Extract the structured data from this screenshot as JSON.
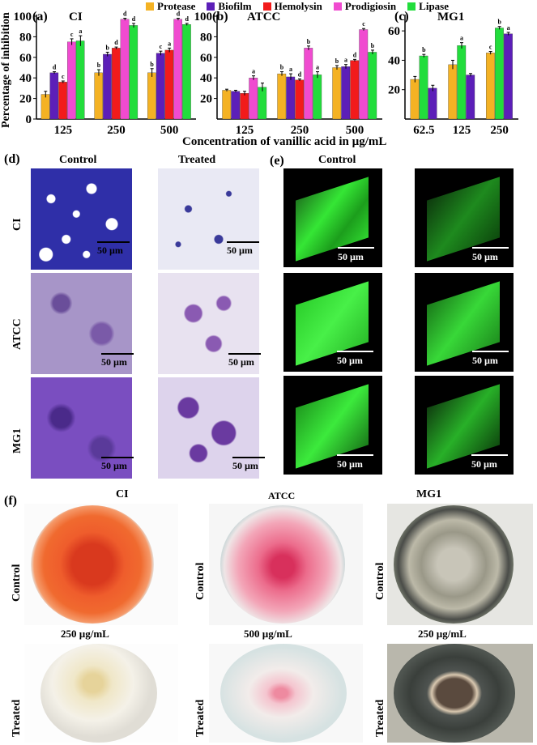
{
  "legend": [
    {
      "label": "Protease",
      "color": "#f4b224"
    },
    {
      "label": "Biofilm",
      "color": "#5c1fb8"
    },
    {
      "label": "Hemolysin",
      "color": "#f21b1b"
    },
    {
      "label": "Prodigiosin",
      "color": "#f04bd0"
    },
    {
      "label": "Lipase",
      "color": "#22dd3c"
    }
  ],
  "panels": {
    "a": {
      "letter": "(a)",
      "strain": "CI"
    },
    "b": {
      "letter": "(b)",
      "strain": "ATCC"
    },
    "c": {
      "letter": "(c)",
      "strain": "MG1"
    },
    "d": {
      "letter": "(d)",
      "control": "Control",
      "treated": "Treated"
    },
    "e": {
      "letter": "(e)",
      "control": "Control"
    },
    "f": {
      "letter": "(f)"
    }
  },
  "ylabel": "Percentage of inhibition",
  "xlabel": "Concentration of vanillic acid in µg/mL",
  "row_labels": [
    "CI",
    "ATCC",
    "MG1"
  ],
  "scale_label": "50 µm",
  "plates": {
    "strains": [
      "CI",
      "ATCC",
      "MG1"
    ],
    "control_label": "Control",
    "treated_label": "Treated",
    "concentrations": [
      "250 µg/mL",
      "500 µg/mL",
      "250 µg/mL"
    ]
  },
  "chart_data": [
    {
      "type": "bar",
      "panel": "(a)",
      "title": "CI",
      "categories": [
        "125",
        "250",
        "500"
      ],
      "ylim": [
        0,
        100
      ],
      "yticks": [
        0,
        20,
        40,
        60,
        80,
        100
      ],
      "series": [
        {
          "name": "Protease",
          "values": [
            24,
            45,
            45
          ],
          "errors": [
            3,
            3,
            4
          ],
          "letters": [
            "",
            "b",
            "b"
          ]
        },
        {
          "name": "Biofilm",
          "values": [
            45,
            63,
            64
          ],
          "errors": [
            1,
            2,
            2
          ],
          "letters": [
            "d",
            "b",
            "c"
          ]
        },
        {
          "name": "Hemolysin",
          "values": [
            36,
            69,
            67
          ],
          "errors": [
            1,
            1,
            2
          ],
          "letters": [
            "c",
            "d",
            "a"
          ]
        },
        {
          "name": "Prodigiosin",
          "values": [
            75,
            97,
            97
          ],
          "errors": [
            3,
            1,
            1
          ],
          "letters": [
            "c",
            "d",
            "d"
          ]
        },
        {
          "name": "Lipase",
          "values": [
            76,
            91,
            92
          ],
          "errors": [
            5,
            2,
            1
          ],
          "letters": [
            "a",
            "d",
            "d"
          ]
        }
      ]
    },
    {
      "type": "bar",
      "panel": "(b)",
      "title": "ATCC",
      "categories": [
        "125",
        "250",
        "500"
      ],
      "ylim": [
        0,
        100
      ],
      "yticks": [
        20,
        40,
        60,
        80,
        100
      ],
      "series": [
        {
          "name": "Protease",
          "values": [
            28,
            44,
            50
          ],
          "errors": [
            1,
            2,
            2
          ],
          "letters": [
            "",
            "b",
            "b"
          ]
        },
        {
          "name": "Biofilm",
          "values": [
            27,
            41,
            51
          ],
          "errors": [
            1,
            3,
            2
          ],
          "letters": [
            "",
            "a",
            "a"
          ]
        },
        {
          "name": "Hemolysin",
          "values": [
            25,
            38,
            57
          ],
          "errors": [
            2,
            1,
            1
          ],
          "letters": [
            "",
            "d",
            "d"
          ]
        },
        {
          "name": "Prodigiosin",
          "values": [
            40,
            69,
            87
          ],
          "errors": [
            2,
            2,
            1
          ],
          "letters": [
            "a",
            "b",
            "c"
          ]
        },
        {
          "name": "Lipase",
          "values": [
            31,
            43,
            65
          ],
          "errors": [
            4,
            3,
            2
          ],
          "letters": [
            "",
            "a",
            "b"
          ]
        }
      ]
    },
    {
      "type": "bar",
      "panel": "(c)",
      "title": "MG1",
      "categories": [
        "62.5",
        "125",
        "250"
      ],
      "ylim": [
        0,
        70
      ],
      "yticks": [
        20,
        40,
        60
      ],
      "series": [
        {
          "name": "Protease",
          "values": [
            27,
            37,
            45
          ],
          "errors": [
            2,
            3,
            1
          ],
          "letters": [
            "",
            "",
            "c"
          ]
        },
        {
          "name": "Lipase",
          "values": [
            43,
            50,
            62
          ],
          "errors": [
            1,
            2,
            1
          ],
          "letters": [
            "b",
            "a",
            "b"
          ]
        },
        {
          "name": "Biofilm",
          "values": [
            21,
            30,
            58
          ],
          "errors": [
            2,
            1,
            1
          ],
          "letters": [
            "",
            "",
            "a"
          ]
        }
      ]
    }
  ]
}
